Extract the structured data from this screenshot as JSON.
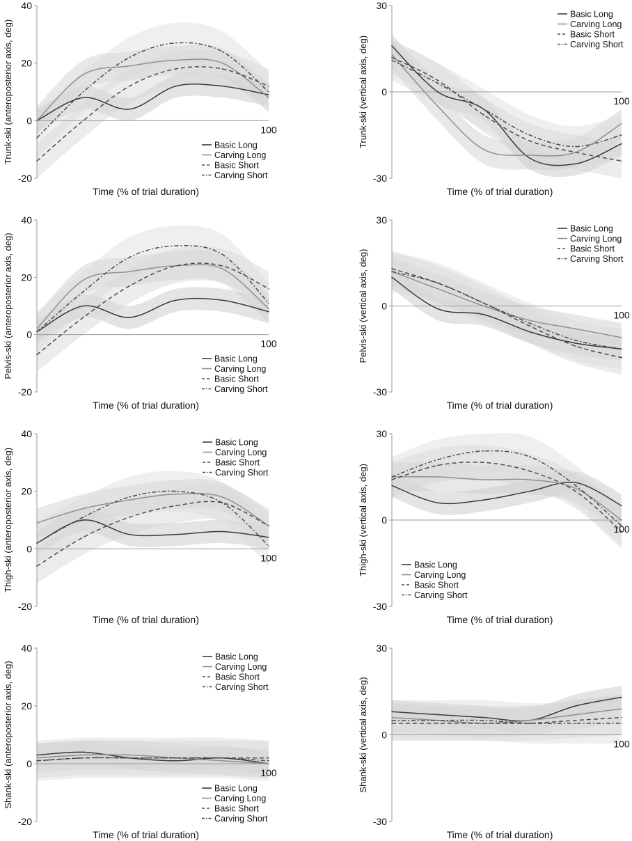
{
  "legend_entries": [
    "Basic Long",
    "Carving Long",
    "Basic Short",
    "Carving Short"
  ],
  "series_styles": {
    "colors": [
      "#3a3a3a",
      "#8f8f8f",
      "#4a4a4a",
      "#4a4a4a"
    ],
    "dash": [
      "solid",
      "solid",
      "dashed",
      "dash-dot"
    ]
  },
  "chart_data": [
    {
      "type": "line",
      "panel": "trunk-ap",
      "ylabel": "Trunk-ski (anteroposterior axis, deg)",
      "xlabel": "Time (% of trial duration)",
      "xlim": [
        0,
        100
      ],
      "ylim": [
        -20,
        40
      ],
      "yticks": [
        "40",
        "20",
        "0",
        "-20"
      ],
      "xtick_end": "100",
      "legend": "bottom-right",
      "x": [
        0,
        20,
        40,
        60,
        80,
        100
      ],
      "series": [
        {
          "name": "Basic Long",
          "values": [
            0,
            8,
            4,
            12,
            12,
            9
          ]
        },
        {
          "name": "Carving Long",
          "values": [
            0,
            16,
            19,
            21,
            20,
            8
          ]
        },
        {
          "name": "Basic Short",
          "values": [
            -14,
            0,
            12,
            18,
            18,
            12
          ]
        },
        {
          "name": "Carving Short",
          "values": [
            -6,
            10,
            22,
            27,
            24,
            10
          ]
        }
      ]
    },
    {
      "type": "line",
      "panel": "trunk-vertical",
      "ylabel": "Trunk-ski (vertical axis, deg)",
      "xlabel": "Time (% of trial duration)",
      "xlim": [
        0,
        100
      ],
      "ylim": [
        -30,
        30
      ],
      "yticks": [
        "30",
        "0",
        "-30"
      ],
      "xtick_end": "100",
      "legend": "top-right",
      "x": [
        0,
        20,
        40,
        60,
        80,
        100
      ],
      "series": [
        {
          "name": "Basic Long",
          "values": [
            16,
            0,
            -6,
            -23,
            -25,
            -18
          ]
        },
        {
          "name": "Carving Long",
          "values": [
            13,
            -5,
            -20,
            -22,
            -21,
            -11
          ]
        },
        {
          "name": "Basic Short",
          "values": [
            12,
            4,
            -8,
            -17,
            -21,
            -24
          ]
        },
        {
          "name": "Carving Short",
          "values": [
            11,
            3,
            -6,
            -15,
            -19,
            -15
          ]
        }
      ]
    },
    {
      "type": "line",
      "panel": "pelvis-ap",
      "ylabel": "Pelvis-ski (anteroposterior axis, deg)",
      "xlabel": "Time (% of trial duration)",
      "xlim": [
        0,
        100
      ],
      "ylim": [
        -20,
        40
      ],
      "yticks": [
        "40",
        "20",
        "0",
        "-20"
      ],
      "xtick_end": "100",
      "legend": "bottom-right",
      "x": [
        0,
        20,
        40,
        60,
        80,
        100
      ],
      "series": [
        {
          "name": "Basic Long",
          "values": [
            1,
            10,
            6,
            12,
            12,
            8
          ]
        },
        {
          "name": "Carving Long",
          "values": [
            2,
            19,
            22,
            24,
            23,
            9
          ]
        },
        {
          "name": "Basic Short",
          "values": [
            -7,
            6,
            17,
            24,
            24,
            16
          ]
        },
        {
          "name": "Carving Short",
          "values": [
            1,
            15,
            27,
            31,
            28,
            11
          ]
        }
      ]
    },
    {
      "type": "line",
      "panel": "pelvis-vertical",
      "ylabel": "Pelvis-ski (vertical axis, deg)",
      "xlabel": "Time (% of trial duration)",
      "xlim": [
        0,
        100
      ],
      "ylim": [
        -30,
        30
      ],
      "yticks": [
        "30",
        "0",
        "-30"
      ],
      "xtick_end": "100",
      "legend": "top-right",
      "x": [
        0,
        20,
        40,
        60,
        80,
        100
      ],
      "series": [
        {
          "name": "Basic Long",
          "values": [
            10,
            -1,
            -3,
            -9,
            -13,
            -15
          ]
        },
        {
          "name": "Carving Long",
          "values": [
            12,
            6,
            0,
            -5,
            -8,
            -11
          ]
        },
        {
          "name": "Basic Short",
          "values": [
            13,
            8,
            1,
            -7,
            -14,
            -18
          ]
        },
        {
          "name": "Carving Short",
          "values": [
            12,
            8,
            1,
            -6,
            -12,
            -15
          ]
        }
      ]
    },
    {
      "type": "line",
      "panel": "thigh-ap",
      "ylabel": "Thigh-ski (anteroposterior axis, deg)",
      "xlabel": "Time (% of trial duration)",
      "xlim": [
        0,
        100
      ],
      "ylim": [
        -20,
        40
      ],
      "yticks": [
        "40",
        "20",
        "0",
        "-20"
      ],
      "xtick_end": "100",
      "legend": "top-right",
      "x": [
        0,
        20,
        40,
        60,
        80,
        100
      ],
      "series": [
        {
          "name": "Basic Long",
          "values": [
            2,
            10,
            5,
            5,
            6,
            4
          ]
        },
        {
          "name": "Carving Long",
          "values": [
            9,
            14,
            17,
            19,
            18,
            8
          ]
        },
        {
          "name": "Basic Short",
          "values": [
            -6,
            4,
            11,
            15,
            16,
            8
          ]
        },
        {
          "name": "Carving Short",
          "values": [
            2,
            11,
            18,
            20,
            16,
            1
          ]
        }
      ]
    },
    {
      "type": "line",
      "panel": "thigh-vertical",
      "ylabel": "Thigh-ski (vertical axis, deg)",
      "xlabel": "Time (% of trial duration)",
      "xlim": [
        0,
        100
      ],
      "ylim": [
        -30,
        30
      ],
      "yticks": [
        "30",
        "0",
        "-30"
      ],
      "xtick_end": "100",
      "legend": "bottom-left",
      "x": [
        0,
        20,
        40,
        60,
        80,
        100
      ],
      "series": [
        {
          "name": "Basic Long",
          "values": [
            12,
            6,
            7,
            10,
            13,
            5
          ]
        },
        {
          "name": "Carving Long",
          "values": [
            15,
            15,
            14,
            14,
            11,
            0
          ]
        },
        {
          "name": "Basic Short",
          "values": [
            14,
            19,
            20,
            17,
            10,
            -4
          ]
        },
        {
          "name": "Carving Short",
          "values": [
            15,
            21,
            24,
            22,
            12,
            -2
          ]
        }
      ]
    },
    {
      "type": "line",
      "panel": "shank-ap",
      "ylabel": "Shank-ski (anteroposterior axis, deg)",
      "xlabel": "Time (% of trial duration)",
      "xlim": [
        0,
        100
      ],
      "ylim": [
        -20,
        40
      ],
      "yticks": [
        "40",
        "20",
        "0",
        "-20"
      ],
      "xtick_end": "100",
      "legend": "top-right",
      "x": [
        0,
        20,
        40,
        60,
        80,
        100
      ],
      "series": [
        {
          "name": "Basic Long",
          "values": [
            3,
            4,
            2,
            1,
            2,
            0
          ]
        },
        {
          "name": "Carving Long",
          "values": [
            2,
            3,
            3,
            2,
            1,
            0
          ]
        },
        {
          "name": "Basic Short",
          "values": [
            1,
            2,
            2,
            2,
            2,
            2
          ]
        },
        {
          "name": "Carving Short",
          "values": [
            1,
            2,
            2,
            2,
            2,
            1
          ]
        }
      ]
    },
    {
      "type": "line",
      "panel": "shank-vertical",
      "ylabel": "Shank-ski (vertical axis, deg)",
      "xlabel": "Time (% of trial duration)",
      "xlim": [
        0,
        100
      ],
      "ylim": [
        -30,
        30
      ],
      "yticks": [
        "30",
        "0",
        "-30"
      ],
      "xtick_end": "100",
      "legend": "bottom-right",
      "x": [
        0,
        20,
        40,
        60,
        80,
        100
      ],
      "series": [
        {
          "name": "Basic Long",
          "values": [
            8,
            7,
            6,
            5,
            10,
            13
          ]
        },
        {
          "name": "Carving Long",
          "values": [
            6,
            5,
            4,
            5,
            7,
            9
          ]
        },
        {
          "name": "Basic Short",
          "values": [
            4,
            4,
            4,
            4,
            5,
            6
          ]
        },
        {
          "name": "Carving Short",
          "values": [
            5,
            5,
            5,
            4,
            4,
            4
          ]
        }
      ]
    }
  ]
}
